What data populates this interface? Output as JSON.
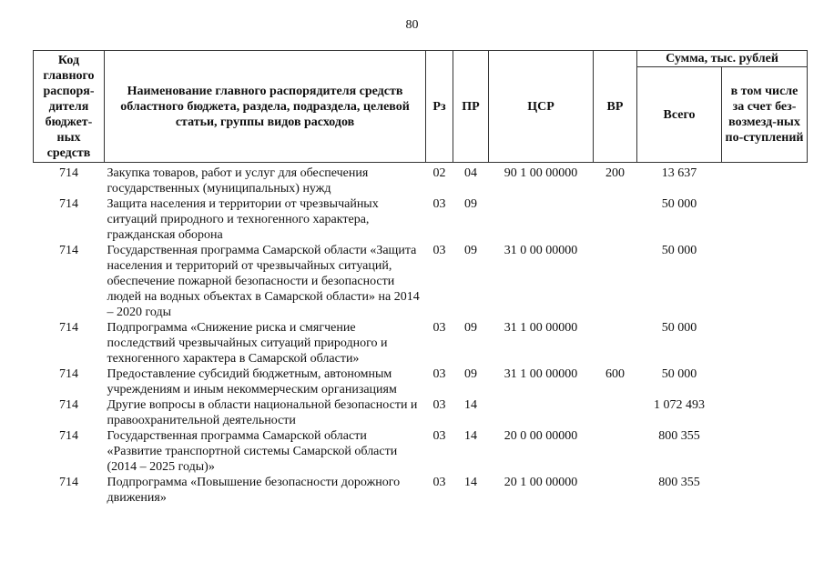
{
  "page_number": "80",
  "headers": {
    "code": "Код главного распоря-дителя бюджет-ных средств",
    "name": "Наименование главного распорядителя средств областного бюджета, раздела, подраздела, целевой статьи, группы видов расходов",
    "rz": "Рз",
    "pr": "ПР",
    "csr": "ЦСР",
    "vr": "ВР",
    "sum": "Сумма, тыс. рублей",
    "total": "Всего",
    "incl": "в том числе за счет без-возмезд-ных по-ступлений"
  },
  "rows": [
    {
      "code": "714",
      "name": "Закупка товаров, работ и услуг для обеспечения государственных (муниципальных) нужд",
      "rz": "02",
      "pr": "04",
      "csr": "90 1 00 00000",
      "vr": "200",
      "total": "13 637",
      "incl": ""
    },
    {
      "code": "714",
      "name": "Защита населения и территории от чрезвычайных ситуаций природного и техногенного характера, гражданская оборона",
      "rz": "03",
      "pr": "09",
      "csr": "",
      "vr": "",
      "total": "50 000",
      "incl": ""
    },
    {
      "code": "714",
      "name": "Государственная программа Самарской области «Защита населения и территорий от чрезвычайных ситуаций, обеспечение пожарной безопасности и безопасности людей на водных объектах в Самарской области» на 2014 – 2020 годы",
      "rz": "03",
      "pr": "09",
      "csr": "31 0 00 00000",
      "vr": "",
      "total": "50 000",
      "incl": ""
    },
    {
      "code": "714",
      "name": "Подпрограмма «Снижение риска и смягчение последствий чрезвычайных ситуаций природного и техногенного характера в Самарской области»",
      "rz": "03",
      "pr": "09",
      "csr": "31 1 00 00000",
      "vr": "",
      "total": "50 000",
      "incl": ""
    },
    {
      "code": "714",
      "name": "Предоставление субсидий бюджетным, автономным учреждениям и иным некоммерческим организациям",
      "rz": "03",
      "pr": "09",
      "csr": "31 1 00 00000",
      "vr": "600",
      "total": "50 000",
      "incl": ""
    },
    {
      "code": "714",
      "name": "Другие вопросы в области национальной безопасности и правоохранительной деятельности",
      "rz": "03",
      "pr": "14",
      "csr": "",
      "vr": "",
      "total": "1 072 493",
      "incl": ""
    },
    {
      "code": "714",
      "name": "Государственная программа Самарской области «Развитие транспортной системы Самарской области (2014 – 2025 годы)»",
      "rz": "03",
      "pr": "14",
      "csr": "20 0 00 00000",
      "vr": "",
      "total": "800 355",
      "incl": ""
    },
    {
      "code": "714",
      "name": "Подпрограмма «Повышение безопасности дорожного движения»",
      "rz": "03",
      "pr": "14",
      "csr": "20 1 00 00000",
      "vr": "",
      "total": "800 355",
      "incl": ""
    }
  ]
}
